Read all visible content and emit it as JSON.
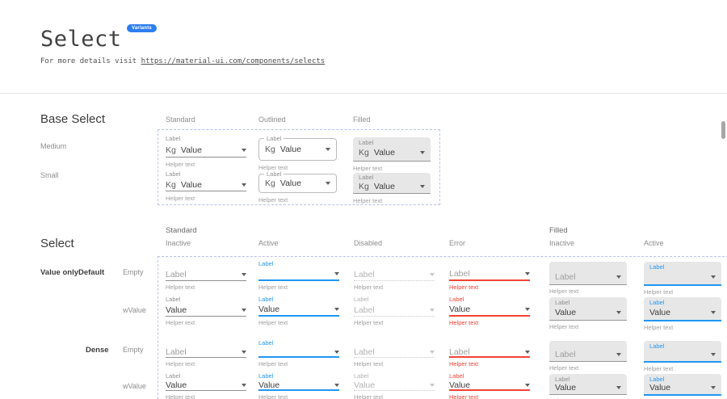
{
  "header": {
    "title": "Select",
    "badge": "Variants",
    "subtitle_prefix": "For more details visit ",
    "subtitle_link": "https://material-ui.com/components/selects"
  },
  "base_select": {
    "heading": "Base Select",
    "columns": [
      "Standard",
      "Outlined",
      "Filled"
    ],
    "row_labels": [
      "Medium",
      "Small"
    ],
    "rows": [
      {
        "size": "medium",
        "cells": [
          {
            "variant": "standard",
            "label": "Label",
            "adornment": "Kg",
            "value": "Value",
            "helper": "Helper text"
          },
          {
            "variant": "outlined",
            "label": "Label",
            "adornment": "Kg",
            "value": "Value",
            "helper": "Helper text"
          },
          {
            "variant": "filled",
            "label": "Label",
            "adornment": "Kg",
            "value": "Value",
            "helper": "Helper text"
          }
        ]
      },
      {
        "size": "small",
        "cells": [
          {
            "variant": "standard",
            "label": "Label",
            "adornment": "Kg",
            "value": "Value",
            "helper": "Helper text"
          },
          {
            "variant": "outlined",
            "label": "Label",
            "adornment": "Kg",
            "value": "Value",
            "helper": "Helper text"
          },
          {
            "variant": "filled",
            "label": "Label",
            "adornment": "Kg",
            "value": "Value",
            "helper": "Helper text"
          }
        ]
      }
    ]
  },
  "select_states": {
    "heading": "Select",
    "group_headers": [
      {
        "label": "Standard"
      },
      {
        "label": "Filled"
      }
    ],
    "column_headers": [
      "Inactive",
      "Active",
      "Disabled",
      "Error",
      "Inactive",
      "Active"
    ],
    "row_labels": {
      "group": "Value only",
      "default": "Default",
      "dense": "Dense",
      "empty": "Empty",
      "wvalue": "wValue"
    },
    "rows": [
      {
        "id": "default-empty",
        "dense": false,
        "cells": [
          {
            "variant": "standard",
            "state": "inactive",
            "shrink_label": "",
            "value": "Label",
            "placeholder": true,
            "helper": "Helper text"
          },
          {
            "variant": "standard",
            "state": "active",
            "shrink_label": "Label",
            "value": "",
            "placeholder": false,
            "helper": "Helper text"
          },
          {
            "variant": "standard",
            "state": "disabled",
            "shrink_label": "",
            "value": "Label",
            "placeholder": true,
            "helper": "Helper text"
          },
          {
            "variant": "standard",
            "state": "error",
            "shrink_label": "",
            "value": "Label",
            "placeholder": true,
            "helper": "Helper text"
          },
          {
            "variant": "filled",
            "state": "inactive",
            "shrink_label": "",
            "value": "Label",
            "placeholder": true,
            "helper": "Helper text"
          },
          {
            "variant": "filled",
            "state": "active",
            "shrink_label": "Label",
            "value": "",
            "placeholder": false,
            "helper": "Helper text"
          }
        ]
      },
      {
        "id": "default-wvalue",
        "dense": false,
        "cells": [
          {
            "variant": "standard",
            "state": "inactive",
            "shrink_label": "Label",
            "value": "Value",
            "placeholder": false,
            "helper": "Helper text"
          },
          {
            "variant": "standard",
            "state": "active",
            "shrink_label": "Label",
            "value": "Value",
            "placeholder": false,
            "helper": "Helper text"
          },
          {
            "variant": "standard",
            "state": "disabled",
            "shrink_label": "Label",
            "value": "Label",
            "placeholder": false,
            "helper": "Helper text"
          },
          {
            "variant": "standard",
            "state": "error",
            "shrink_label": "Label",
            "value": "Value",
            "placeholder": false,
            "helper": "Helper text"
          },
          {
            "variant": "filled",
            "state": "inactive",
            "shrink_label": "Label",
            "value": "Value",
            "placeholder": false,
            "helper": "Helper text"
          },
          {
            "variant": "filled",
            "state": "active",
            "shrink_label": "Label",
            "value": "Value",
            "placeholder": false,
            "helper": "Helper text"
          }
        ]
      },
      {
        "id": "dense-empty",
        "dense": true,
        "cells": [
          {
            "variant": "standard",
            "state": "inactive",
            "shrink_label": "",
            "value": "Label",
            "placeholder": true,
            "helper": "Helper text"
          },
          {
            "variant": "standard",
            "state": "active",
            "shrink_label": "Label",
            "value": "",
            "placeholder": false,
            "helper": "Helper text"
          },
          {
            "variant": "standard",
            "state": "disabled",
            "shrink_label": "",
            "value": "Label",
            "placeholder": true,
            "helper": "Helper text"
          },
          {
            "variant": "standard",
            "state": "error",
            "shrink_label": "",
            "value": "Label",
            "placeholder": true,
            "helper": "Helper text"
          },
          {
            "variant": "filled",
            "state": "inactive",
            "shrink_label": "",
            "value": "Label",
            "placeholder": true,
            "helper": "Helper text"
          },
          {
            "variant": "filled",
            "state": "active",
            "shrink_label": "Label",
            "value": "",
            "placeholder": false,
            "helper": "Helper text"
          }
        ]
      },
      {
        "id": "dense-wvalue",
        "dense": true,
        "cells": [
          {
            "variant": "standard",
            "state": "inactive",
            "shrink_label": "Label",
            "value": "Value",
            "placeholder": false,
            "helper": "Helper text"
          },
          {
            "variant": "standard",
            "state": "active",
            "shrink_label": "Label",
            "value": "Value",
            "placeholder": false,
            "helper": "Helper text"
          },
          {
            "variant": "standard",
            "state": "disabled",
            "shrink_label": "Label",
            "value": "Value",
            "placeholder": false,
            "helper": "Helper text"
          },
          {
            "variant": "standard",
            "state": "error",
            "shrink_label": "Label",
            "value": "Value",
            "placeholder": false,
            "helper": "Helper text"
          },
          {
            "variant": "filled",
            "state": "inactive",
            "shrink_label": "Label",
            "value": "Value",
            "placeholder": false,
            "helper": "Helper text"
          },
          {
            "variant": "filled",
            "state": "active",
            "shrink_label": "Label",
            "value": "Value",
            "placeholder": false,
            "helper": "Helper text"
          }
        ]
      }
    ]
  },
  "icons": {
    "dropdown_arrow": "caret-down"
  },
  "colors": {
    "accent_blue": "#2196f3",
    "error_red": "#f44336",
    "badge_blue": "#2e7ff0",
    "filled_bg": "#e7e7e7",
    "dashed_border": "#b9c0f4",
    "text_primary": "#3d3d3d",
    "label_gray": "#8f8f8f",
    "helper_gray": "#9e9e9e"
  }
}
